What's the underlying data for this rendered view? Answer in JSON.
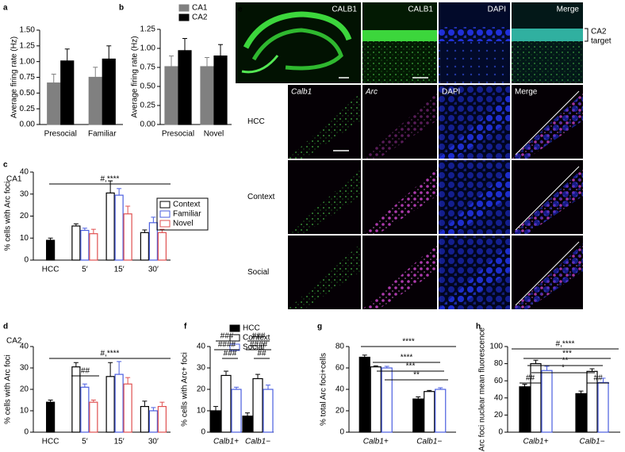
{
  "chart_data": [
    {
      "type": "bar",
      "panel": "a",
      "y_label": "Average firing rate (Hz)",
      "categories": [
        "Presocial",
        "Familiar"
      ],
      "series": [
        {
          "color": "#808080",
          "fill": "#808080",
          "values": [
            0.66,
            0.75
          ],
          "errors": [
            0.14,
            0.16
          ]
        },
        {
          "color": "#000000",
          "fill": "#000000",
          "values": [
            1.01,
            1.04
          ],
          "errors": [
            0.19,
            0.21
          ]
        }
      ],
      "ylim": [
        0,
        1.5
      ],
      "yticks": [
        {
          "value": 0,
          "label": "0.00"
        },
        0.25,
        {
          "value": 0.5,
          "label": "0.50"
        },
        0.75,
        {
          "value": 1,
          "label": "1.00"
        },
        1.25,
        {
          "value": 1.5,
          "label": "1.50"
        }
      ]
    },
    {
      "type": "bar",
      "panel": "b",
      "y_label": "Average firing rate (Hz)",
      "categories": [
        "Presocial",
        "Novel"
      ],
      "series": [
        {
          "name": "CA1",
          "color": "#808080",
          "fill": "#808080",
          "values": [
            0.76,
            0.76
          ],
          "errors": [
            0.14,
            0.12
          ]
        },
        {
          "name": "CA2",
          "color": "#000000",
          "fill": "#000000",
          "values": [
            0.97,
            0.9
          ],
          "errors": [
            0.16,
            0.15
          ]
        }
      ],
      "ylim": [
        0,
        1.25
      ],
      "yticks": [
        {
          "value": 0,
          "label": "0.00"
        },
        0.25,
        {
          "value": 0.5,
          "label": "0.50"
        },
        0.75,
        {
          "value": 1,
          "label": "1.00"
        },
        1.25
      ],
      "legend": "top"
    },
    {
      "type": "bar",
      "panel": "c",
      "subtitle": "CA1",
      "y_label": "% cells with Arc foci",
      "categories": [
        "HCC",
        "5′",
        "15′",
        "30′"
      ],
      "series": [
        {
          "color": "#000000",
          "fill": "#000000",
          "values": [
            9,
            null,
            null,
            null
          ],
          "errors": [
            1,
            null,
            null,
            null
          ]
        },
        {
          "name": "Context",
          "color": "#000000",
          "fill": "#ffffff",
          "values": [
            null,
            15.5,
            30.5,
            12.5
          ],
          "errors": [
            null,
            1,
            5.5,
            1.2
          ]
        },
        {
          "name": "Familiar",
          "color": "#4a5ee0",
          "fill": "#ffffff",
          "values": [
            null,
            13.5,
            29.5,
            17
          ],
          "errors": [
            null,
            1,
            3,
            2.5
          ]
        },
        {
          "name": "Novel",
          "color": "#e05050",
          "fill": "#ffffff",
          "values": [
            null,
            12,
            21,
            12.5
          ],
          "errors": [
            null,
            2,
            3.5,
            1.5
          ]
        }
      ],
      "ylim": [
        0,
        40
      ],
      "yticks": [
        0,
        10,
        20,
        30,
        40
      ],
      "annotations": [
        "#,****"
      ],
      "legend": "right"
    },
    {
      "type": "bar",
      "panel": "d",
      "subtitle": "CA2",
      "y_label": "% cells with Arc foci",
      "categories": [
        "HCC",
        "5′",
        "15′",
        "30′"
      ],
      "series": [
        {
          "color": "#000000",
          "fill": "#000000",
          "values": [
            14,
            null,
            null,
            null
          ],
          "errors": [
            1,
            null,
            null,
            null
          ]
        },
        {
          "color": "#000000",
          "fill": "#ffffff",
          "values": [
            null,
            30.5,
            26,
            12
          ],
          "errors": [
            null,
            2,
            6.5,
            2.5
          ]
        },
        {
          "color": "#4a5ee0",
          "fill": "#ffffff",
          "values": [
            null,
            21,
            27,
            10
          ],
          "errors": [
            null,
            1.5,
            6,
            1.5
          ]
        },
        {
          "color": "#e05050",
          "fill": "#ffffff",
          "values": [
            null,
            14,
            22.5,
            12
          ],
          "errors": [
            null,
            1,
            3,
            2
          ]
        }
      ],
      "ylim": [
        0,
        40
      ],
      "yticks": [
        0,
        10,
        20,
        30,
        40
      ],
      "annotations": [
        "#,****",
        "##"
      ]
    },
    {
      "type": "bar",
      "panel": "f",
      "y_label": "% cells with Arc+ foci",
      "categories": [
        "Calb1+",
        "Calb1−"
      ],
      "series": [
        {
          "name": "HCC",
          "color": "#000000",
          "fill": "#000000",
          "values": [
            10,
            7.5
          ],
          "errors": [
            2,
            1.5
          ]
        },
        {
          "name": "Context",
          "color": "#000000",
          "fill": "#ffffff",
          "values": [
            26.5,
            25
          ],
          "errors": [
            2,
            2
          ]
        },
        {
          "name": "Social",
          "color": "#4a5ee0",
          "fill": "#ffffff",
          "values": [
            20,
            20
          ],
          "errors": [
            1,
            2
          ]
        }
      ],
      "ylim": [
        0,
        40
      ],
      "yticks": [
        0,
        10,
        20,
        30,
        40
      ],
      "annotations": [
        "###",
        "####",
        "###",
        "###",
        "####",
        "##"
      ],
      "legend": "top"
    },
    {
      "type": "bar",
      "panel": "g",
      "y_label": "% total Arc foci+cells",
      "categories": [
        "Calb1+",
        "Calb1−"
      ],
      "series": [
        {
          "color": "#000000",
          "fill": "#000000",
          "values": [
            70,
            31
          ],
          "errors": [
            2,
            2
          ]
        },
        {
          "color": "#000000",
          "fill": "#ffffff",
          "values": [
            61,
            38
          ],
          "errors": [
            1,
            1
          ]
        },
        {
          "color": "#4a5ee0",
          "fill": "#ffffff",
          "values": [
            60,
            40
          ],
          "errors": [
            1.5,
            1.5
          ]
        }
      ],
      "ylim": [
        0,
        80
      ],
      "yticks": [
        0,
        20,
        40,
        60,
        80
      ],
      "annotations": [
        "****",
        "****",
        "***",
        "**"
      ]
    },
    {
      "type": "bar",
      "panel": "h",
      "y_label": "Arc foci nuclear mean fluorescence",
      "categories": [
        "Calb1+",
        "Calb1−"
      ],
      "series": [
        {
          "color": "#000000",
          "fill": "#000000",
          "values": [
            53,
            45
          ],
          "errors": [
            3,
            3
          ]
        },
        {
          "color": "#000000",
          "fill": "#ffffff",
          "values": [
            80,
            71
          ],
          "errors": [
            4,
            3
          ]
        },
        {
          "color": "#4a5ee0",
          "fill": "#ffffff",
          "values": [
            72,
            58
          ],
          "errors": [
            5,
            5
          ]
        }
      ],
      "ylim": [
        0,
        100
      ],
      "yticks": [
        0,
        20,
        40,
        60,
        80,
        100
      ],
      "annotations": [
        "#,****",
        "***",
        "**",
        "*",
        "##",
        "##"
      ]
    }
  ],
  "panel_e": {
    "panel": "e",
    "top_labels": [
      "CALB1",
      "CALB1",
      "DAPI",
      "Merge"
    ],
    "side_label": [
      "CA2",
      "target"
    ],
    "column_labels": [
      "Calb1",
      "Arc",
      "DAPI",
      "Merge"
    ],
    "row_labels": [
      "HCC",
      "Context",
      "Social"
    ]
  }
}
